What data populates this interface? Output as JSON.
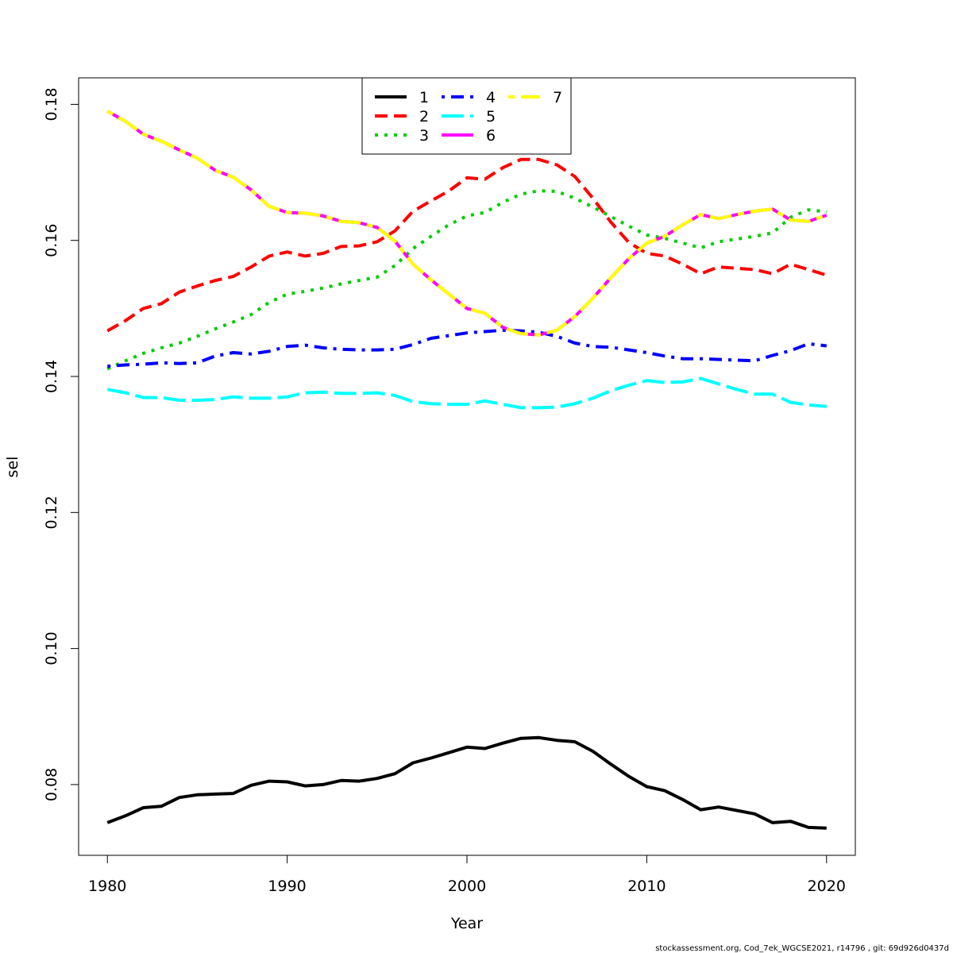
{
  "chart_data": {
    "type": "line",
    "title": "",
    "xlabel": "Year",
    "ylabel": "sel",
    "xlim": [
      1978.4,
      2021.6
    ],
    "ylim": [
      0.0696,
      0.1839
    ],
    "x_ticks": [
      1980,
      1990,
      2000,
      2010,
      2020
    ],
    "x_tick_labels": [
      "1980",
      "1990",
      "2000",
      "2010",
      "2020"
    ],
    "y_ticks": [
      0.08,
      0.1,
      0.12,
      0.14,
      0.16,
      0.18
    ],
    "y_tick_labels": [
      "0.08",
      "0.10",
      "0.12",
      "0.14",
      "0.16",
      "0.18"
    ],
    "legend_position": "top-center",
    "grid": false,
    "x": [
      1980,
      1981,
      1982,
      1983,
      1984,
      1985,
      1986,
      1987,
      1988,
      1989,
      1990,
      1991,
      1992,
      1993,
      1994,
      1995,
      1996,
      1997,
      1998,
      1999,
      2000,
      2001,
      2002,
      2003,
      2004,
      2005,
      2006,
      2007,
      2008,
      2009,
      2010,
      2011,
      2012,
      2013,
      2014,
      2015,
      2016,
      2017,
      2018,
      2019,
      2020
    ],
    "series": [
      {
        "name": "1",
        "color": "#000000",
        "dash": "solid",
        "values": [
          0.0744,
          0.0754,
          0.0766,
          0.0768,
          0.0781,
          0.0785,
          0.0786,
          0.0787,
          0.0799,
          0.0805,
          0.0804,
          0.0798,
          0.08,
          0.0806,
          0.0805,
          0.0809,
          0.0816,
          0.0832,
          0.0839,
          0.0847,
          0.0855,
          0.0853,
          0.0861,
          0.0868,
          0.0869,
          0.0865,
          0.0863,
          0.0849,
          0.083,
          0.0812,
          0.0797,
          0.0791,
          0.0778,
          0.0763,
          0.0767,
          0.0762,
          0.0757,
          0.0744,
          0.0746,
          0.0737,
          0.0736
        ]
      },
      {
        "name": "2",
        "color": "#ff0000",
        "dash": "dashed",
        "values": [
          0.1467,
          0.1482,
          0.15,
          0.1507,
          0.1524,
          0.1533,
          0.1541,
          0.1547,
          0.1561,
          0.1577,
          0.1583,
          0.1577,
          0.1581,
          0.1591,
          0.1592,
          0.1598,
          0.1614,
          0.1643,
          0.1658,
          0.1673,
          0.1692,
          0.169,
          0.1707,
          0.1719,
          0.1719,
          0.1711,
          0.1694,
          0.1662,
          0.1627,
          0.1597,
          0.1581,
          0.1577,
          0.1565,
          0.1551,
          0.1561,
          0.1559,
          0.1557,
          0.1551,
          0.1565,
          0.1557,
          0.1549
        ]
      },
      {
        "name": "3",
        "color": "#00cd00",
        "dash": "dotted",
        "values": [
          0.1411,
          0.1423,
          0.1434,
          0.1442,
          0.1449,
          0.1459,
          0.147,
          0.148,
          0.1491,
          0.1509,
          0.1521,
          0.1525,
          0.153,
          0.1536,
          0.1541,
          0.1546,
          0.1563,
          0.1588,
          0.1606,
          0.1623,
          0.1636,
          0.1641,
          0.1656,
          0.1668,
          0.1673,
          0.1672,
          0.1662,
          0.1649,
          0.1635,
          0.1621,
          0.1608,
          0.1603,
          0.1596,
          0.1589,
          0.1598,
          0.1602,
          0.1606,
          0.1611,
          0.1634,
          0.1645,
          0.1642
        ]
      },
      {
        "name": "4",
        "color": "#0000ff",
        "dash": "dotdash",
        "values": [
          0.1415,
          0.1417,
          0.1418,
          0.142,
          0.1419,
          0.142,
          0.143,
          0.1435,
          0.1433,
          0.1437,
          0.1444,
          0.1446,
          0.1442,
          0.144,
          0.1439,
          0.1439,
          0.144,
          0.1447,
          0.1456,
          0.146,
          0.1464,
          0.1466,
          0.1468,
          0.1467,
          0.1465,
          0.1459,
          0.1449,
          0.1444,
          0.1443,
          0.1439,
          0.1435,
          0.143,
          0.1426,
          0.1426,
          0.1425,
          0.1424,
          0.1423,
          0.1431,
          0.1438,
          0.1448,
          0.1445
        ]
      },
      {
        "name": "5",
        "color": "#00ffff",
        "dash": "longdash",
        "values": [
          0.1381,
          0.1376,
          0.1369,
          0.1369,
          0.1365,
          0.1365,
          0.1366,
          0.137,
          0.1368,
          0.1368,
          0.137,
          0.1376,
          0.1377,
          0.1375,
          0.1375,
          0.1376,
          0.1372,
          0.1363,
          0.136,
          0.1359,
          0.1359,
          0.1364,
          0.1359,
          0.1354,
          0.1354,
          0.1355,
          0.136,
          0.1368,
          0.1379,
          0.1387,
          0.1394,
          0.1391,
          0.1392,
          0.1397,
          0.1389,
          0.1381,
          0.1374,
          0.1374,
          0.1362,
          0.1358,
          0.1356
        ]
      },
      {
        "name": "6",
        "color": "#ff00ff",
        "dash": "solid",
        "values": [
          0.179,
          0.1775,
          0.1756,
          0.1746,
          0.1733,
          0.1721,
          0.1703,
          0.1693,
          0.1674,
          0.165,
          0.1641,
          0.164,
          0.1636,
          0.1628,
          0.1626,
          0.1619,
          0.1599,
          0.1565,
          0.1542,
          0.1521,
          0.15,
          0.1493,
          0.1472,
          0.1463,
          0.1461,
          0.1468,
          0.1488,
          0.1515,
          0.1545,
          0.1573,
          0.1596,
          0.1606,
          0.1623,
          0.1638,
          0.1632,
          0.1638,
          0.1643,
          0.1646,
          0.163,
          0.1628,
          0.1637
        ]
      },
      {
        "name": "7",
        "color": "#ffff00",
        "dash": "twodash",
        "values": [
          0.179,
          0.1775,
          0.1756,
          0.1746,
          0.1733,
          0.1721,
          0.1703,
          0.1693,
          0.1674,
          0.165,
          0.1641,
          0.164,
          0.1636,
          0.1628,
          0.1626,
          0.1619,
          0.1599,
          0.1565,
          0.1542,
          0.1521,
          0.15,
          0.1493,
          0.1472,
          0.1463,
          0.1461,
          0.1468,
          0.1488,
          0.1515,
          0.1545,
          0.1573,
          0.1596,
          0.1606,
          0.1623,
          0.1638,
          0.1632,
          0.1638,
          0.1643,
          0.1646,
          0.163,
          0.1628,
          0.1637
        ]
      }
    ],
    "footer": "stockassessment.org, Cod_7ek_WGCSE2021, r14796 , git: 69d926d0437d"
  }
}
